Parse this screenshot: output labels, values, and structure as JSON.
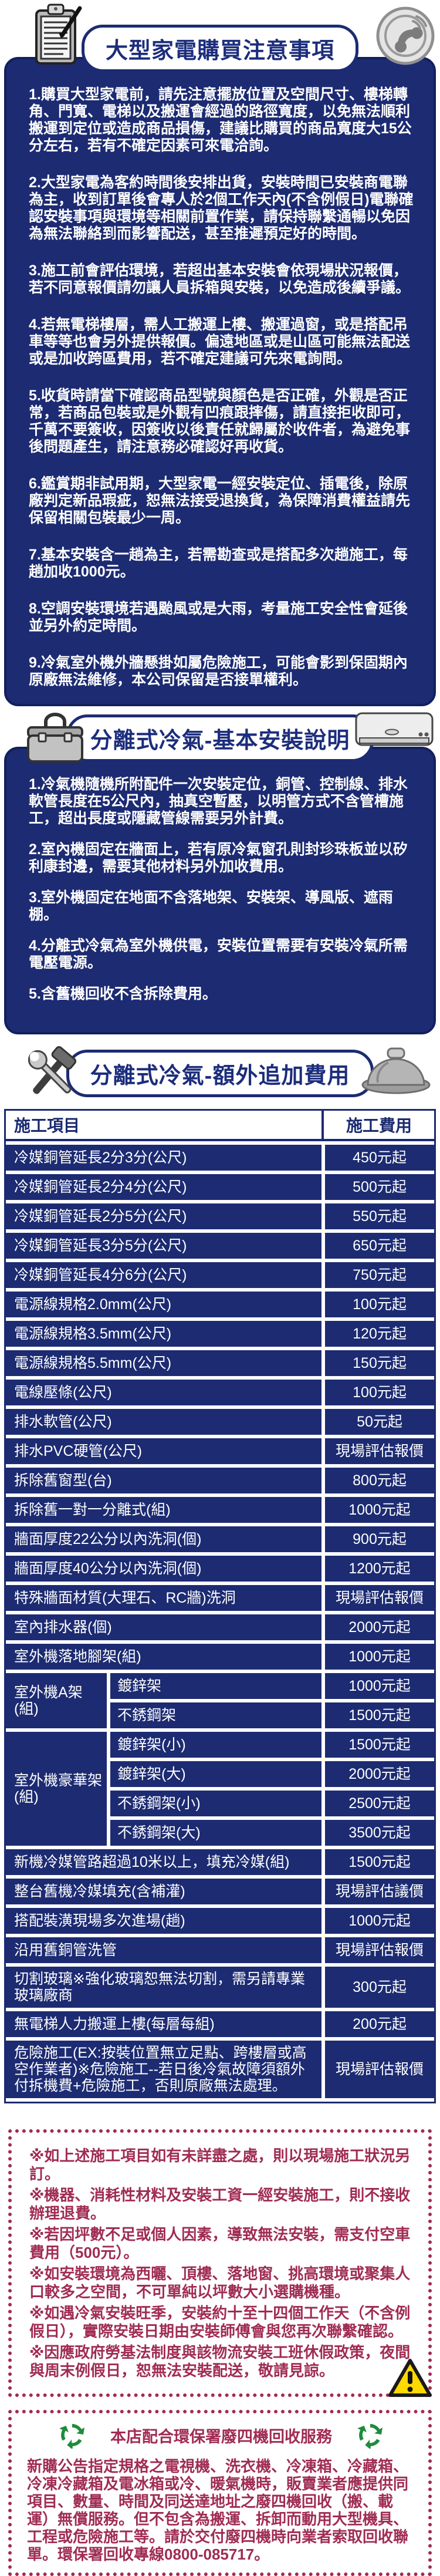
{
  "colors": {
    "navy": "#1c2b72",
    "navy_dark": "#12205c",
    "maroon": "#a02c52",
    "warning_yellow": "#ffd900",
    "recycle_green": "#1e8c3c"
  },
  "section_notice": {
    "title": "大型家電購買注意事項",
    "items": [
      "1.購買大型家電前，請先注意擺放位置及空間尺寸、樓梯轉角、門寬、電梯以及搬運會經過的路徑寬度，以免無法順利搬運到定位或造成商品損傷，建議比購買的商品寬度大15公分左右，若有不確定因素可來電洽詢。",
      "2.大型家電為客約時間後安排出貨，安裝時間已安裝商電聯為主，收到訂單後會專人於2個工作天內(不含例假日)電聯確認安裝事項與環境等相關前置作業，請保持聯繫通暢以免因為無法聯絡到而影響配送，甚至推遲預定好的時間。",
      "3.施工前會評估環境，若超出基本安裝會依現場狀況報價，若不同意報價請勿讓人員拆箱與安裝，以免造成後續爭議。",
      "4.若無電梯樓層，需人工搬運上樓、搬運過窗，或是搭配吊車等等也會另外提供報價。偏遠地區或是山區可能無法配送或是加收跨區費用，若不確定建議可先來電詢問。",
      "5.收貨時請當下確認商品型號與顏色是否正確，外觀是否正常，若商品包裝或是外觀有凹痕跟摔傷，請直接拒收即可，千萬不要簽收，因簽收以後責任就歸屬於收件者，為避免事後問題產生，請注意務必確認好再收貨。",
      "6.鑑賞期非試用期，大型家電一經安裝定位、插電後，除原廠判定新品瑕疵，恕無法接受退換貨，為保障消費權益請先保留相關包裝最少一周。",
      "7.基本安裝含一趟為主，若需勘查或是搭配多次趟施工，每趟加收1000元。",
      "8.空調安裝環境若遇颱風或是大雨，考量施工安全性會延後並另外約定時間。",
      "9.冷氣室外機外牆懸掛如屬危險施工，可能會影到保固期內原廠無法維修，本公司保留是否接單權利。"
    ]
  },
  "section_install": {
    "title": "分離式冷氣-基本安裝說明",
    "items": [
      "1.冷氣機隨機所附配件一次安裝定位，銅管、控制線、排水軟管長度在5公尺內，抽真空暫壓，以明管方式不含管槽施工，超出長度或隱藏管線需要另外計費。",
      "2.室內機固定在牆面上，若有原冷氣窗孔則封珍珠板並以矽利康封邊，需要其他材料另外加收費用。",
      "3.室外機固定在地面不含落地架、安裝架、導風版、遮雨棚。",
      "4.分離式冷氣為室外機供電，安裝位置需要有安裝冷氣所需電壓電源。",
      "5.含舊機回收不含拆除費用。"
    ]
  },
  "section_fees": {
    "title": "分離式冷氣-額外追加費用",
    "table": {
      "headers": [
        "施工項目",
        "施工費用"
      ],
      "rows": [
        {
          "item": "冷媒銅管延長2分3分(公尺)",
          "fee": "450元起"
        },
        {
          "item": "冷媒銅管延長2分4分(公尺)",
          "fee": "500元起"
        },
        {
          "item": "冷媒銅管延長2分5分(公尺)",
          "fee": "550元起"
        },
        {
          "item": "冷媒銅管延長3分5分(公尺)",
          "fee": "650元起"
        },
        {
          "item": "冷媒銅管延長4分6分(公尺)",
          "fee": "750元起"
        },
        {
          "item": "電源線規格2.0mm(公尺)",
          "fee": "100元起"
        },
        {
          "item": "電源線規格3.5mm(公尺)",
          "fee": "120元起"
        },
        {
          "item": "電源線規格5.5mm(公尺)",
          "fee": "150元起"
        },
        {
          "item": "電線壓條(公尺)",
          "fee": "100元起"
        },
        {
          "item": "排水軟管(公尺)",
          "fee": "50元起"
        },
        {
          "item": "排水PVC硬管(公尺)",
          "fee": "現場評估報價"
        },
        {
          "item": "拆除舊窗型(台)",
          "fee": "800元起"
        },
        {
          "item": "拆除舊一對一分離式(組)",
          "fee": "1000元起"
        },
        {
          "item": "牆面厚度22公分以內洗洞(個)",
          "fee": "900元起"
        },
        {
          "item": "牆面厚度40公分以內洗洞(個)",
          "fee": "1200元起"
        },
        {
          "item": "特殊牆面材質(大理石、RC牆)洗洞",
          "fee": "現場評估報價"
        },
        {
          "item": "室內排水器(個)",
          "fee": "2000元起"
        },
        {
          "item": "室外機落地腳架(組)",
          "fee": "1000元起"
        },
        {
          "item": "室外機A架(組)",
          "sub": [
            {
              "item": "鍍鋅架",
              "fee": "1000元起"
            },
            {
              "item": "不銹鋼架",
              "fee": "1500元起"
            }
          ]
        },
        {
          "item": "室外機豪華架(組)",
          "sub": [
            {
              "item": "鍍鋅架(小)",
              "fee": "1500元起"
            },
            {
              "item": "鍍鋅架(大)",
              "fee": "2000元起"
            },
            {
              "item": "不銹鋼架(小)",
              "fee": "2500元起"
            },
            {
              "item": "不銹鋼架(大)",
              "fee": "3500元起"
            }
          ]
        },
        {
          "item": "新機冷媒管路超過10米以上，填充冷媒(組)",
          "fee": "1500元起"
        },
        {
          "item": "整台舊機冷媒填充(含補灌)",
          "fee": "現場評估議價"
        },
        {
          "item": "搭配裝潢現場多次進場(趟)",
          "fee": "1000元起"
        },
        {
          "item": "沿用舊銅管洗管",
          "fee": "現場評估報價"
        },
        {
          "item": "切割玻璃※強化玻璃恕無法切割，需另請專業玻璃廠商",
          "fee": "300元起"
        },
        {
          "item": "無電梯人力搬運上樓(每層每組)",
          "fee": "200元起"
        },
        {
          "item": "危險施工(EX:按裝位置無立足點、跨樓層或高空作業者)※危險施工--若日後冷氣故障須額外付拆機費+危險施工，否則原廠無法處理。",
          "fee": "現場評估報價"
        }
      ]
    }
  },
  "notes": {
    "items": [
      "※如上述施工項目如有未詳盡之處，則以現場施工狀況另訂。",
      "※機器、消耗性材料及安裝工資一經安裝施工，則不接收辦理退費。",
      "※若因坪數不足或個人因素，導致無法安裝，需支付空車費用（500元）。",
      "※如安裝環境為西曬、頂樓、落地窗、挑高環境或聚集人口較多之空間，不可單純以坪數大小選購機種。",
      "※如遇冷氣安裝旺季，安裝約十至十四個工作天（不含例假日），實際安裝日期由安裝師傅會與您再次聯繫確認。",
      "※因應政府勞基法制度與該物流安裝工班休假政策，夜間與周末例假日，恕無法安裝配送，敬請見諒。"
    ]
  },
  "recycle": {
    "title": "本店配合環保署廢四機回收服務",
    "body": "新購公告指定規格之電視機、洗衣機、冷凍箱、冷藏箱、冷凍冷藏箱及電冰箱或冷、暖氣機時，販賣業者應提供同項目、數量、時間及同送達地址之廢四機回收（搬、載運）無償服務。但不包含為搬運、拆卸而動用大型機具、工程或危險施工等。請於交付廢四機時向業者索取回收聯單。環保署回收專線0800-085717。"
  }
}
